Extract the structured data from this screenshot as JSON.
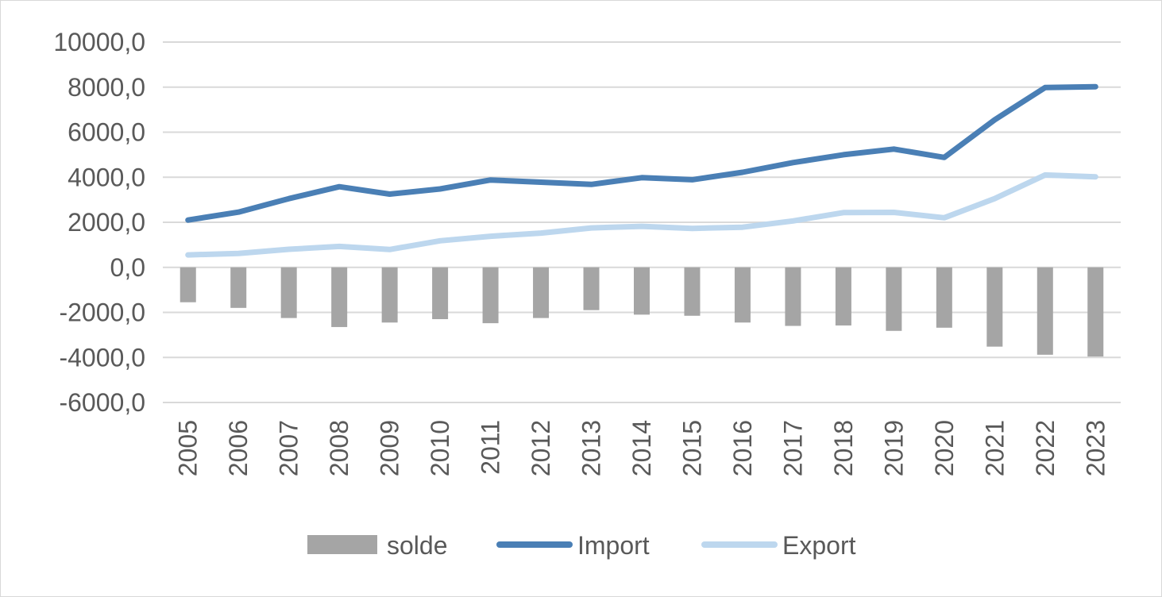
{
  "chart_data": {
    "type": "bar+line",
    "categories": [
      "2005",
      "2006",
      "2007",
      "2008",
      "2009",
      "2010",
      "2011",
      "2012",
      "2013",
      "2014",
      "2015",
      "2016",
      "2017",
      "2018",
      "2019",
      "2020",
      "2021",
      "2022",
      "2023"
    ],
    "series": [
      {
        "name": "solde",
        "type": "bar",
        "color": "#a5a5a5",
        "values": [
          -1550,
          -1800,
          -2250,
          -2650,
          -2450,
          -2300,
          -2480,
          -2250,
          -1900,
          -2100,
          -2150,
          -2450,
          -2600,
          -2580,
          -2820,
          -2680,
          -3520,
          -3880,
          -3960
        ]
      },
      {
        "name": "Import",
        "type": "line",
        "color": "#4a7fb5",
        "values": [
          2100,
          2450,
          3050,
          3580,
          3250,
          3480,
          3880,
          3780,
          3680,
          3980,
          3890,
          4220,
          4650,
          5000,
          5250,
          4880,
          6550,
          7980,
          8020
        ]
      },
      {
        "name": "Export",
        "type": "line",
        "color": "#bdd7ee",
        "values": [
          550,
          620,
          800,
          930,
          790,
          1180,
          1380,
          1520,
          1750,
          1820,
          1730,
          1780,
          2060,
          2430,
          2440,
          2200,
          3050,
          4100,
          4020
        ]
      }
    ],
    "y_ticks": [
      "10000,0",
      "8000,0",
      "6000,0",
      "4000,0",
      "2000,0",
      "0,0",
      "-2000,0",
      "-4000,0",
      "-6000,0"
    ],
    "ylim": [
      -6000,
      10000
    ],
    "grid": true,
    "legend_position": "bottom",
    "title": "",
    "xlabel": "",
    "ylabel": ""
  }
}
